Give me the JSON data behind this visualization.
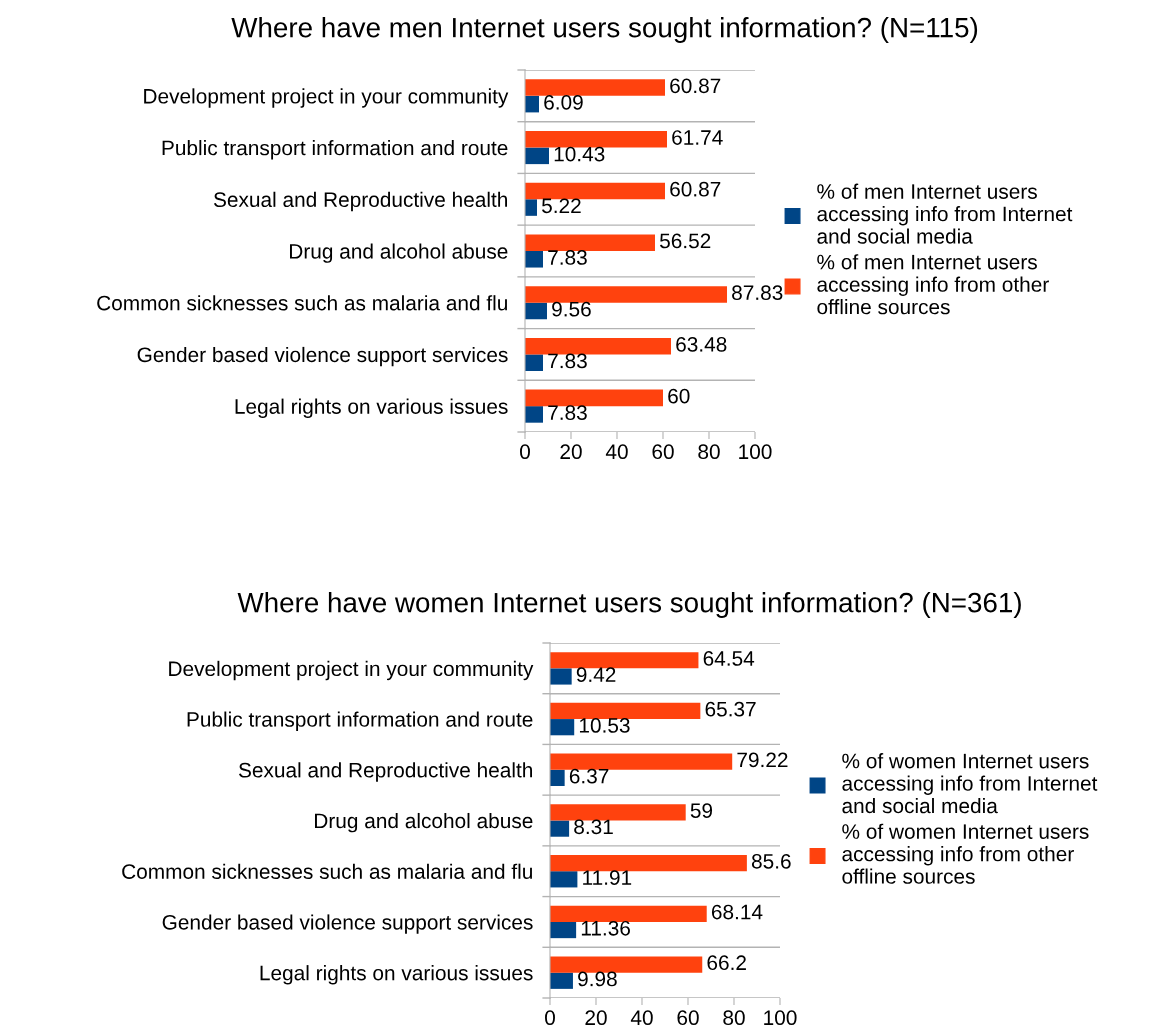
{
  "chart_data": [
    {
      "type": "bar",
      "orientation": "horizontal",
      "title": "Where have men Internet users sought information? (N=115)",
      "categories": [
        "Development project in your community",
        "Public transport information and route",
        "Sexual and Reproductive health",
        "Drug and alcohol abuse",
        "Common sicknesses such as malaria and flu",
        "Gender based violence support services",
        "Legal rights on various issues"
      ],
      "series": [
        {
          "name": "% of men Internet users accessing info from Internet and social media",
          "color": "#004586",
          "values": [
            6.09,
            10.43,
            5.22,
            7.83,
            9.56,
            7.83,
            7.83
          ]
        },
        {
          "name": "% of men Internet users accessing info from other offline sources",
          "color": "#ff420e",
          "values": [
            60.87,
            61.74,
            60.87,
            56.52,
            87.83,
            63.48,
            60
          ]
        }
      ],
      "xlim": [
        0,
        100
      ],
      "xticks": [
        0,
        20,
        40,
        60,
        80,
        100
      ],
      "grid": "y",
      "legend": "right",
      "data_labels": true
    },
    {
      "type": "bar",
      "orientation": "horizontal",
      "title": "Where have women Internet users sought information? (N=361)",
      "categories": [
        "Development project in your community",
        "Public transport information and route",
        "Sexual and Reproductive health",
        "Drug and alcohol abuse",
        "Common sicknesses such as malaria and flu",
        "Gender based violence support services",
        "Legal rights on various issues"
      ],
      "series": [
        {
          "name": "% of women Internet users accessing info from Internet and social media",
          "color": "#004586",
          "values": [
            9.42,
            10.53,
            6.37,
            8.31,
            11.91,
            11.36,
            9.98
          ]
        },
        {
          "name": "% of women Internet users accessing info from other offline sources",
          "color": "#ff420e",
          "values": [
            64.54,
            65.37,
            79.22,
            59,
            85.6,
            68.14,
            66.2
          ]
        }
      ],
      "xlim": [
        0,
        100
      ],
      "xticks": [
        0,
        20,
        40,
        60,
        80,
        100
      ],
      "grid": "y",
      "legend": "right",
      "data_labels": true
    }
  ]
}
